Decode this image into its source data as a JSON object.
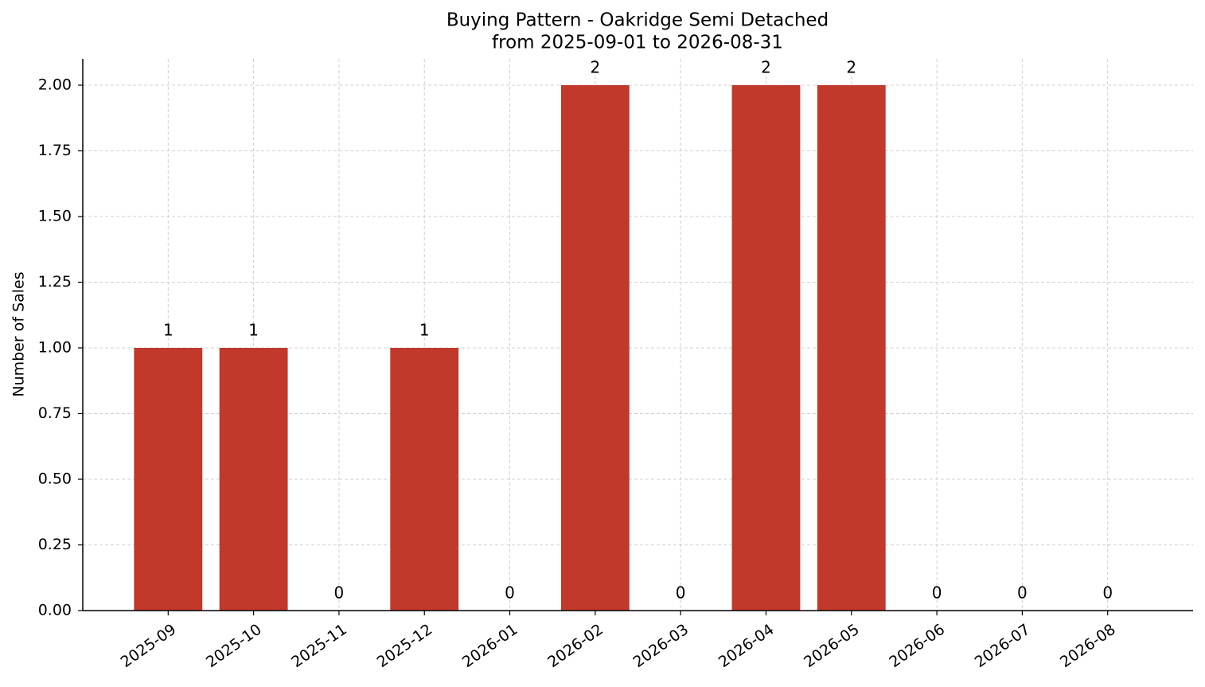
{
  "chart_data": {
    "type": "bar",
    "title": "Buying Pattern - Oakridge Semi Detached",
    "subtitle": "from 2025-09-01 to 2026-08-31",
    "y_label": "Number of Sales",
    "categories": [
      "2025-09",
      "2025-10",
      "2025-11",
      "2025-12",
      "2026-01",
      "2026-02",
      "2026-03",
      "2026-04",
      "2026-05",
      "2026-06",
      "2026-07",
      "2026-08"
    ],
    "values": [
      1,
      1,
      0,
      1,
      0,
      2,
      0,
      2,
      2,
      0,
      0,
      0
    ],
    "color": "#c0392b",
    "ylim": [
      0,
      2.1
    ],
    "yticks": [
      {
        "value": 0,
        "label": "0.00"
      },
      {
        "value": 0.25,
        "label": "0.25"
      },
      {
        "value": 0.5,
        "label": "0.50"
      },
      {
        "value": 0.75,
        "label": "0.75"
      },
      {
        "value": 1,
        "label": "1.00"
      },
      {
        "value": 1.25,
        "label": "1.25"
      },
      {
        "value": 1.5,
        "label": "1.50"
      },
      {
        "value": 1.75,
        "label": "1.75"
      },
      {
        "value": 2,
        "label": "2.00"
      }
    ],
    "grid": true
  }
}
